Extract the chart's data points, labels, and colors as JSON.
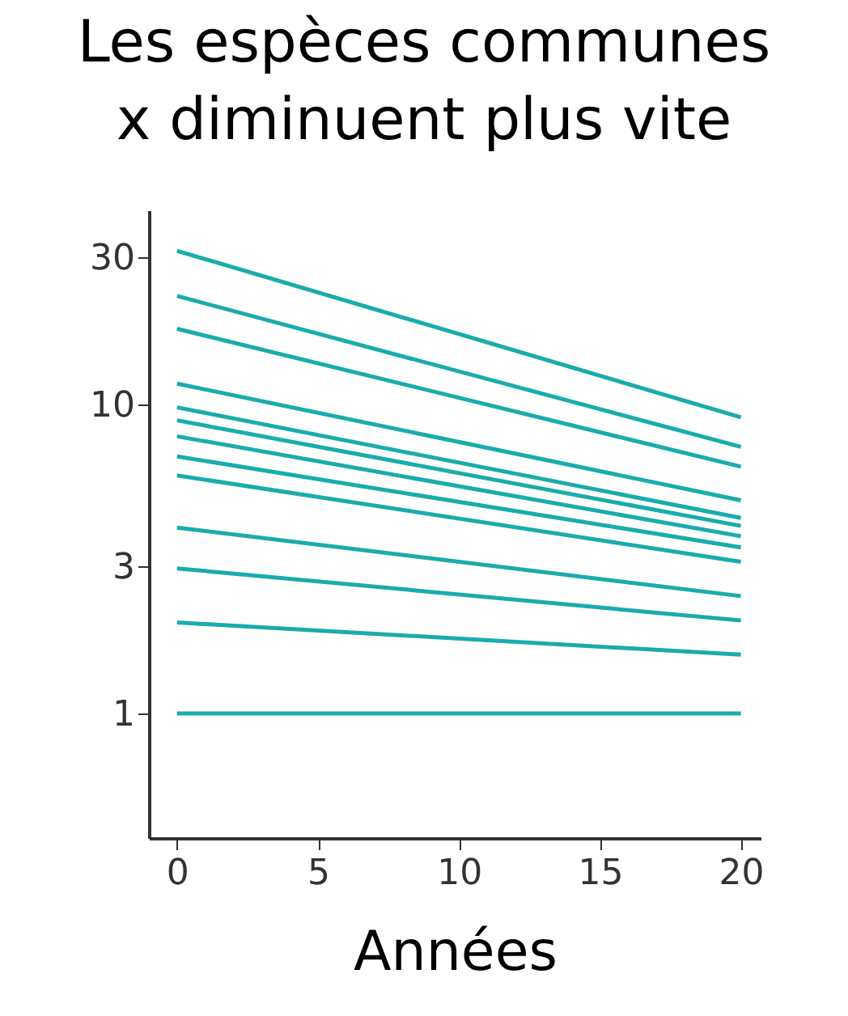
{
  "chart_data": {
    "type": "line",
    "title": "Les espèces communes\nx   diminuent plus vite",
    "xlabel": "Années",
    "log": "y",
    "grid": false,
    "marker": "none",
    "line_style": "solid",
    "xlim": [
      -1,
      20.7
    ],
    "xticks": [
      0,
      5,
      10,
      15,
      20
    ],
    "ylim": [
      0.395,
      42.6
    ],
    "yticks": [
      1,
      3,
      10,
      30
    ],
    "x": [
      0,
      20
    ],
    "series": [
      {
        "color": "#1aacac",
        "values": [
          31.5,
          9.1
        ]
      },
      {
        "color": "#1aacac",
        "values": [
          22.5,
          7.3
        ]
      },
      {
        "color": "#1aacac",
        "values": [
          17.6,
          6.3
        ]
      },
      {
        "color": "#1aacac",
        "values": [
          11.7,
          4.9
        ]
      },
      {
        "color": "#1aacac",
        "values": [
          9.8,
          4.3
        ]
      },
      {
        "color": "#1aacac",
        "values": [
          8.9,
          4.05
        ]
      },
      {
        "color": "#1aacac",
        "values": [
          7.9,
          3.75
        ]
      },
      {
        "color": "#1aacac",
        "values": [
          6.8,
          3.45
        ]
      },
      {
        "color": "#1aacac",
        "values": [
          5.9,
          3.1
        ]
      },
      {
        "color": "#1aacac",
        "values": [
          4.0,
          2.4
        ]
      },
      {
        "color": "#1aacac",
        "values": [
          2.95,
          2.0
        ]
      },
      {
        "color": "#1aacac",
        "values": [
          1.97,
          1.55
        ]
      },
      {
        "color": "#1aacac",
        "values": [
          1,
          1
        ]
      }
    ]
  }
}
